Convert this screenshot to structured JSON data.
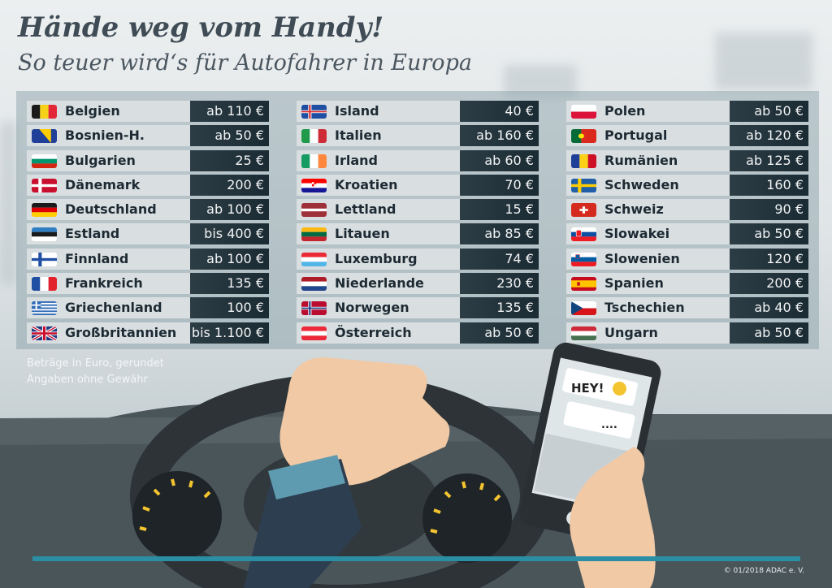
{
  "title": "Hände weg vom Handy!",
  "subtitle": "So teuer wird‘s für Autofahrer in Europa",
  "columns": [
    [
      {
        "country": "Belgien",
        "fine": "ab 110 €",
        "flag": "belgium-flag"
      },
      {
        "country": "Bosnien-H.",
        "fine": "ab 50 €",
        "flag": "bosnia-flag"
      },
      {
        "country": "Bulgarien",
        "fine": "25 €",
        "flag": "bulgaria-flag"
      },
      {
        "country": "Dänemark",
        "fine": "200 €",
        "flag": "denmark-flag"
      },
      {
        "country": "Deutschland",
        "fine": "ab 100 €",
        "flag": "germany-flag"
      },
      {
        "country": "Estland",
        "fine": "bis 400 €",
        "flag": "estonia-flag"
      },
      {
        "country": "Finnland",
        "fine": "ab 100 €",
        "flag": "finland-flag"
      },
      {
        "country": "Frankreich",
        "fine": "135 €",
        "flag": "france-flag"
      },
      {
        "country": "Griechenland",
        "fine": "100 €",
        "flag": "greece-flag"
      },
      {
        "country": "Großbritannien",
        "fine": "bis 1.100 €",
        "flag": "uk-flag"
      }
    ],
    [
      {
        "country": "Island",
        "fine": "40 €",
        "flag": "iceland-flag"
      },
      {
        "country": "Italien",
        "fine": "ab 160 €",
        "flag": "italy-flag"
      },
      {
        "country": "Irland",
        "fine": "ab 60 €",
        "flag": "ireland-flag"
      },
      {
        "country": "Kroatien",
        "fine": "70 €",
        "flag": "croatia-flag"
      },
      {
        "country": "Lettland",
        "fine": "15 €",
        "flag": "latvia-flag"
      },
      {
        "country": "Litauen",
        "fine": "ab 85 €",
        "flag": "lithuania-flag"
      },
      {
        "country": "Luxemburg",
        "fine": "74 €",
        "flag": "luxembourg-flag"
      },
      {
        "country": "Niederlande",
        "fine": "230 €",
        "flag": "netherlands-flag"
      },
      {
        "country": "Norwegen",
        "fine": "135 €",
        "flag": "norway-flag"
      },
      {
        "country": "Österreich",
        "fine": "ab 50 €",
        "flag": "austria-flag"
      }
    ],
    [
      {
        "country": "Polen",
        "fine": "ab 50 €",
        "flag": "poland-flag"
      },
      {
        "country": "Portugal",
        "fine": "ab 120 €",
        "flag": "portugal-flag"
      },
      {
        "country": "Rumänien",
        "fine": "ab 125 €",
        "flag": "romania-flag"
      },
      {
        "country": "Schweden",
        "fine": "160 €",
        "flag": "sweden-flag"
      },
      {
        "country": "Schweiz",
        "fine": "90 €",
        "flag": "switzerland-flag"
      },
      {
        "country": "Slowakei",
        "fine": "ab 50 €",
        "flag": "slovakia-flag"
      },
      {
        "country": "Slowenien",
        "fine": "120 €",
        "flag": "slovenia-flag"
      },
      {
        "country": "Spanien",
        "fine": "200 €",
        "flag": "spain-flag"
      },
      {
        "country": "Tschechien",
        "fine": "ab 40 €",
        "flag": "czech-flag"
      },
      {
        "country": "Ungarn",
        "fine": "ab 50 €",
        "flag": "hungary-flag"
      }
    ]
  ],
  "notes": {
    "line1": "Beträge in Euro, gerundet",
    "line2": "Angaben ohne Gewähr"
  },
  "phone": {
    "message": "HEY!",
    "reply": "...."
  },
  "copyright": "© 01/2018 ADAC e. V.",
  "colors": {
    "fine_bg": "#1f2f37",
    "row_bg": "#d9dfe1",
    "accent_line": "#2a8ea4",
    "title": "#3f4b55"
  }
}
